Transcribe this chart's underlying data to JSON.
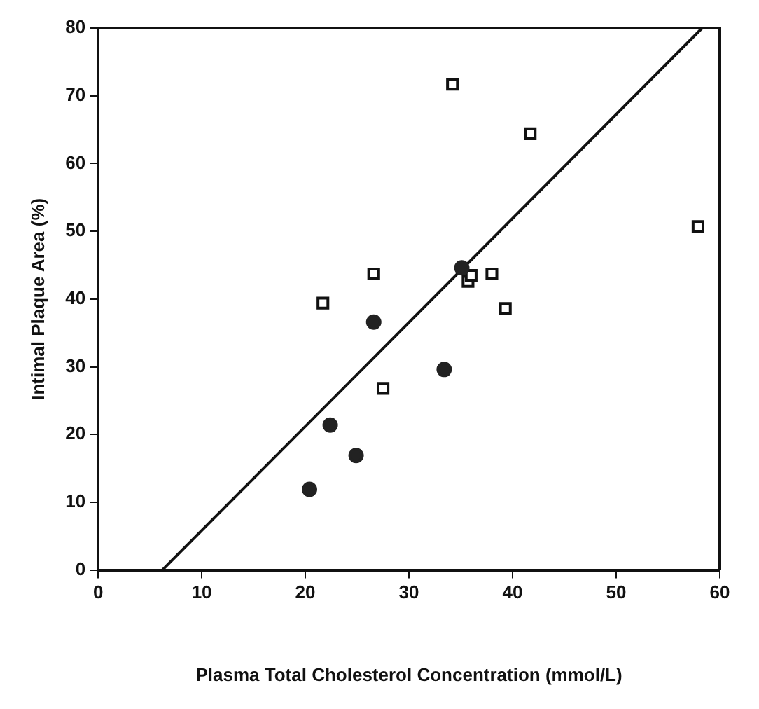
{
  "chart_data": {
    "type": "scatter",
    "xlabel": "Plasma Total Cholesterol Concentration (mmol/L)",
    "ylabel": "Intimal Plaque Area (%)",
    "xlim": [
      0,
      60
    ],
    "ylim": [
      0,
      80
    ],
    "xticks": [
      0,
      10,
      20,
      30,
      40,
      50,
      60
    ],
    "yticks": [
      0,
      10,
      20,
      30,
      40,
      50,
      60,
      70,
      80
    ],
    "grid": false,
    "legend": false,
    "series": [
      {
        "marker": "circle",
        "color": "#222222",
        "x": [
          20.4,
          22.4,
          24.9,
          26.6,
          33.4,
          35.1
        ],
        "values": [
          11.9,
          21.4,
          16.9,
          36.6,
          29.6,
          44.6
        ]
      },
      {
        "marker": "square",
        "color": "#111111",
        "x": [
          21.7,
          26.6,
          27.5,
          34.2,
          35.7,
          36.0,
          38.0,
          39.3,
          41.7,
          57.9
        ],
        "values": [
          39.4,
          43.7,
          26.8,
          71.7,
          42.6,
          43.5,
          43.7,
          38.6,
          64.4,
          50.7
        ]
      },
      {
        "type": "line",
        "marker": "none",
        "color": "#111111",
        "x": [
          6.2,
          58.3
        ],
        "values": [
          0,
          80
        ]
      }
    ]
  }
}
